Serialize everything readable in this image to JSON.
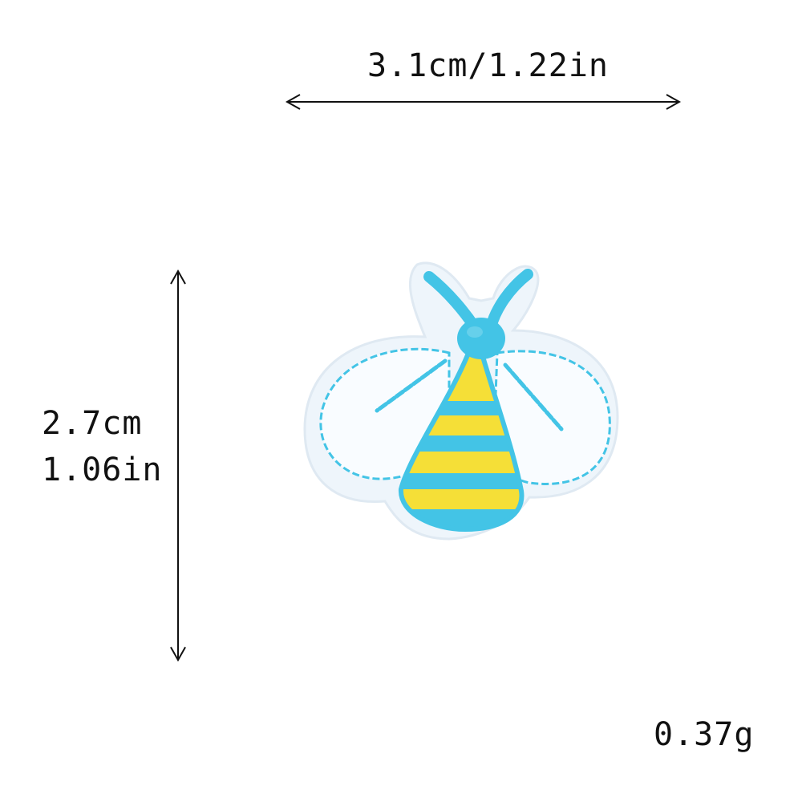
{
  "dimensions": {
    "width_label": "3.1cm/1.22in",
    "height_label_cm": "2.7cm",
    "height_label_in": "1.06in",
    "weight_label": "0.37g"
  },
  "product": {
    "icon": "bee-patch-icon"
  },
  "colors": {
    "background": "#ffffff",
    "patch_base": "#edf4fa",
    "wing_fill": "#f8fbfe",
    "thread_blue": "#43c4e6",
    "thread_yellow": "#f5df37",
    "arrow": "#111111"
  }
}
